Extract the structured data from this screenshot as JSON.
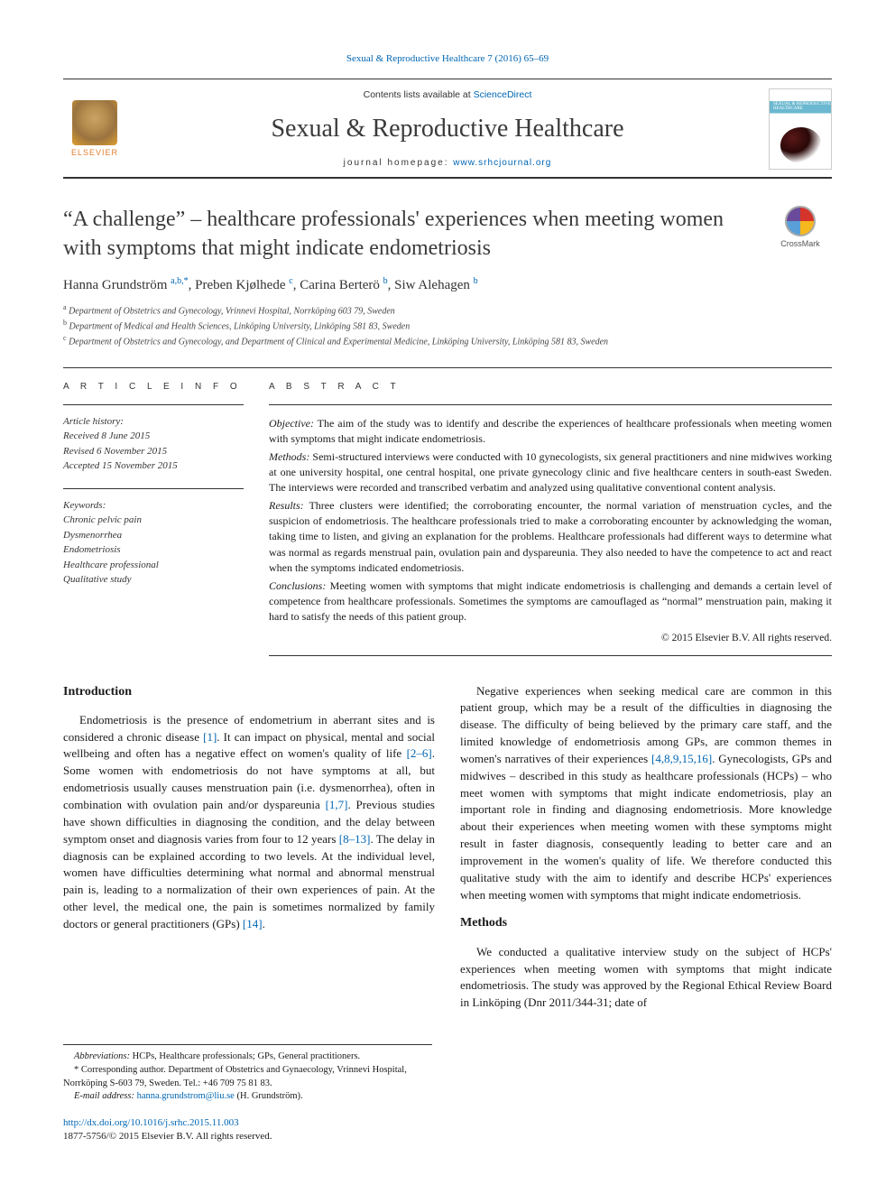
{
  "journal_ref": "Sexual & Reproductive Healthcare 7 (2016) 65–69",
  "masthead": {
    "publisher": "ELSEVIER",
    "contents_prefix": "Contents lists available at ",
    "contents_link": "ScienceDirect",
    "journal_title": "Sexual & Reproductive Healthcare",
    "homepage_prefix": "journal homepage: ",
    "homepage_url": "www.srhcjournal.org",
    "cover_text": "SEXUAL & REPRODUCTIVE HEALTHCARE"
  },
  "crossmark_label": "CrossMark",
  "title": "“A challenge” – healthcare professionals' experiences when meeting women with symptoms that might indicate endometriosis",
  "authors_html": "Hanna Grundström <sup>a,b,*</sup>, Preben Kjølhede <sup>c</sup>, Carina Berterö <sup>b</sup>, Siw Alehagen <sup>b</sup>",
  "affiliations": [
    {
      "sup": "a",
      "text": "Department of Obstetrics and Gynecology, Vrinnevi Hospital, Norrköping 603 79, Sweden"
    },
    {
      "sup": "b",
      "text": "Department of Medical and Health Sciences, Linköping University, Linköping 581 83, Sweden"
    },
    {
      "sup": "c",
      "text": "Department of Obstetrics and Gynecology, and Department of Clinical and Experimental Medicine, Linköping University, Linköping 581 83, Sweden"
    }
  ],
  "article_info": {
    "heading": "A R T I C L E   I N F O",
    "history_label": "Article history:",
    "history": [
      "Received 8 June 2015",
      "Revised 6 November 2015",
      "Accepted 15 November 2015"
    ],
    "keywords_label": "Keywords:",
    "keywords": [
      "Chronic pelvic pain",
      "Dysmenorrhea",
      "Endometriosis",
      "Healthcare professional",
      "Qualitative study"
    ]
  },
  "abstract": {
    "heading": "A B S T R A C T",
    "objective_label": "Objective:",
    "objective": "The aim of the study was to identify and describe the experiences of healthcare professionals when meeting women with symptoms that might indicate endometriosis.",
    "methods_label": "Methods:",
    "methods": "Semi-structured interviews were conducted with 10 gynecologists, six general practitioners and nine midwives working at one university hospital, one central hospital, one private gynecology clinic and five healthcare centers in south-east Sweden. The interviews were recorded and transcribed verbatim and analyzed using qualitative conventional content analysis.",
    "results_label": "Results:",
    "results": "Three clusters were identified; the corroborating encounter, the normal variation of menstruation cycles, and the suspicion of endometriosis. The healthcare professionals tried to make a corroborating encounter by acknowledging the woman, taking time to listen, and giving an explanation for the problems. Healthcare professionals had different ways to determine what was normal as regards menstrual pain, ovulation pain and dyspareunia. They also needed to have the competence to act and react when the symptoms indicated endometriosis.",
    "conclusions_label": "Conclusions:",
    "conclusions": "Meeting women with symptoms that might indicate endometriosis is challenging and demands a certain level of competence from healthcare professionals. Sometimes the symptoms are camouflaged as “normal” menstruation pain, making it hard to satisfy the needs of this patient group.",
    "copyright": "© 2015 Elsevier B.V. All rights reserved."
  },
  "body": {
    "intro_heading": "Introduction",
    "intro_p1_pre": "Endometriosis is the presence of endometrium in aberrant sites and is considered a chronic disease ",
    "ref1": "[1]",
    "intro_p1_mid1": ". It can impact on physical, mental and social wellbeing and often has a negative effect on women's quality of life ",
    "ref2_6": "[2–6]",
    "intro_p1_mid2": ". Some women with endometriosis do not have symptoms at all, but endometriosis usually causes menstruation pain (i.e. dysmenorrhea), often in combination with ovulation pain and/or dyspareunia ",
    "ref1_7": "[1,7]",
    "intro_p1_mid3": ". Previous studies have shown difficulties in diagnosing the condition, and the delay between symptom onset and diagnosis varies from four to 12 years ",
    "ref8_13": "[8–13]",
    "intro_p1_mid4": ". The delay in diagnosis can be explained according to two levels. At the individual level, women have difficulties determining what normal and abnormal menstrual pain is, leading to a normalization of their own experiences of pain. At the other level, the medical one, the pain is sometimes normalized by family doctors or general practitioners (GPs) ",
    "ref14": "[14]",
    "intro_p1_end": ".",
    "col2_p1_pre": "Negative experiences when seeking medical care are common in this patient group, which may be a result of the difficulties in diagnosing the disease. The difficulty of being believed by the primary care staff, and the limited knowledge of endometriosis among GPs, are common themes in women's narratives of their experiences ",
    "ref_multi": "[4,8,9,15,16]",
    "col2_p1_post": ". Gynecologists, GPs and midwives – described in this study as healthcare professionals (HCPs) – who meet women with symptoms that might indicate endometriosis, play an important role in finding and diagnosing endometriosis. More knowledge about their experiences when meeting women with these symptoms might result in faster diagnosis, consequently leading to better care and an improvement in the women's quality of life. We therefore conducted this qualitative study with the aim to identify and describe HCPs' experiences when meeting women with symptoms that might indicate endometriosis.",
    "methods_heading": "Methods",
    "methods_p1": "We conducted a qualitative interview study on the subject of HCPs' experiences when meeting women with symptoms that might indicate endometriosis. The study was approved by the Regional Ethical Review Board in Linköping (Dnr 2011/344-31; date of"
  },
  "footnotes": {
    "abbrev_label": "Abbreviations:",
    "abbrev_text": " HCPs, Healthcare professionals; GPs, General practitioners.",
    "corresponding": "* Corresponding author. Department of Obstetrics and Gynaecology, Vrinnevi Hospital, Norrköping S-603 79, Sweden. Tel.: +46 709 75 81 83.",
    "email_label": "E-mail address:",
    "email": "hanna.grundstrom@liu.se",
    "email_suffix": " (H. Grundström)."
  },
  "doi": {
    "url": "http://dx.doi.org/10.1016/j.srhc.2015.11.003",
    "issn_line": "1877-5756/© 2015 Elsevier B.V. All rights reserved."
  },
  "colors": {
    "link": "#0066b3",
    "text": "#1a1a1a",
    "rule": "#333333"
  }
}
